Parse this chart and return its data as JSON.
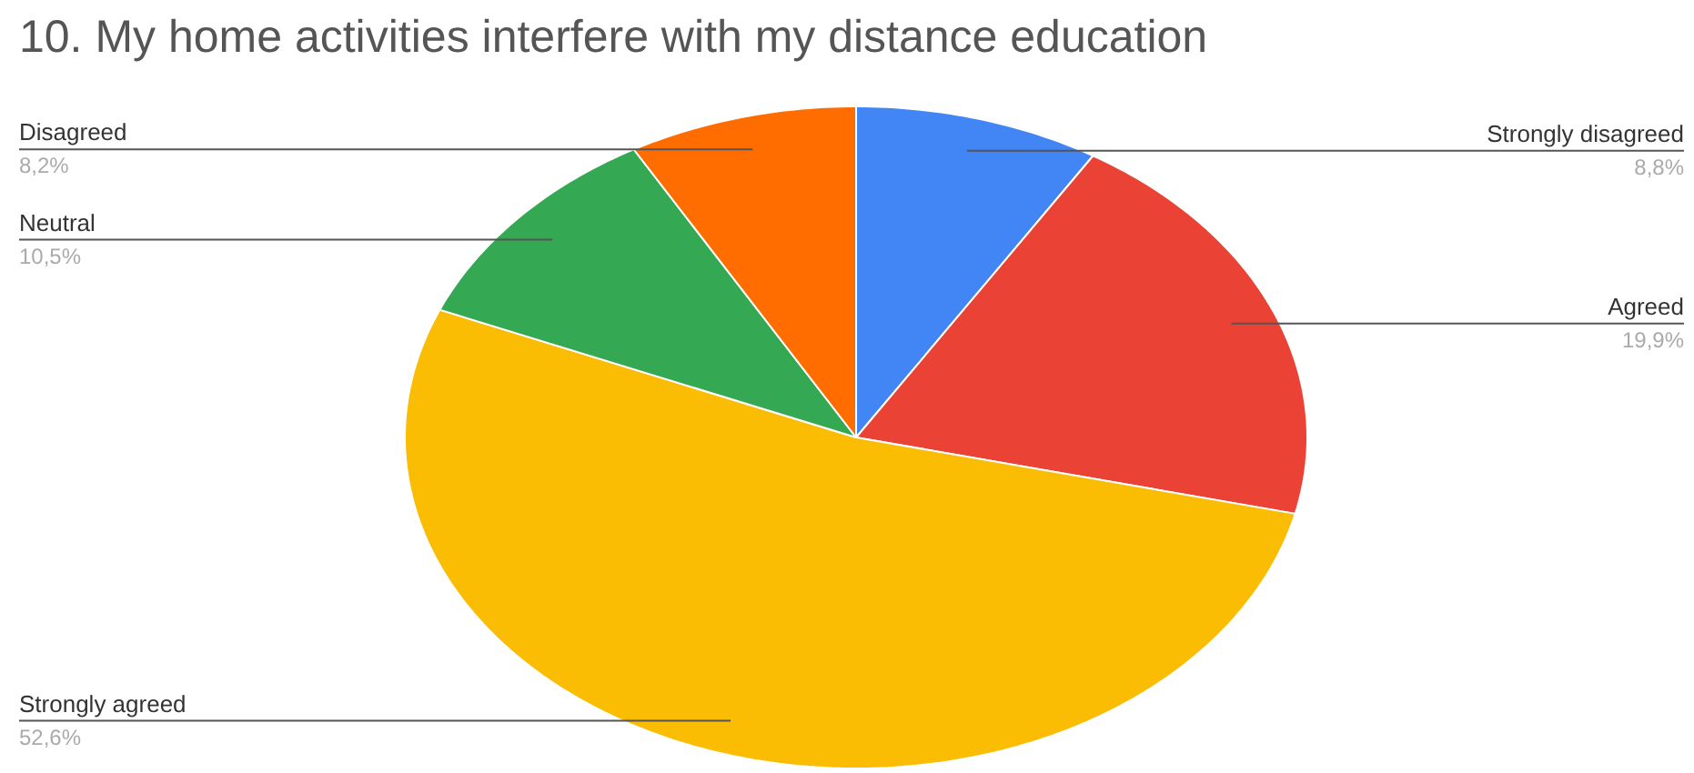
{
  "chart_data": {
    "type": "pie",
    "title": "10. My home activities interfere with my distance education",
    "categories": [
      "Strongly disagreed",
      "Agreed",
      "Strongly agreed",
      "Neutral",
      "Disagreed"
    ],
    "values": [
      8.8,
      19.9,
      52.6,
      10.5,
      8.2
    ],
    "colors": [
      "#4285f4",
      "#ea4335",
      "#fbbc04",
      "#34a853",
      "#ff6d01"
    ],
    "value_labels": [
      "8,8%",
      "19,9%",
      "52,6%",
      "10,5%",
      "8,2%"
    ]
  }
}
